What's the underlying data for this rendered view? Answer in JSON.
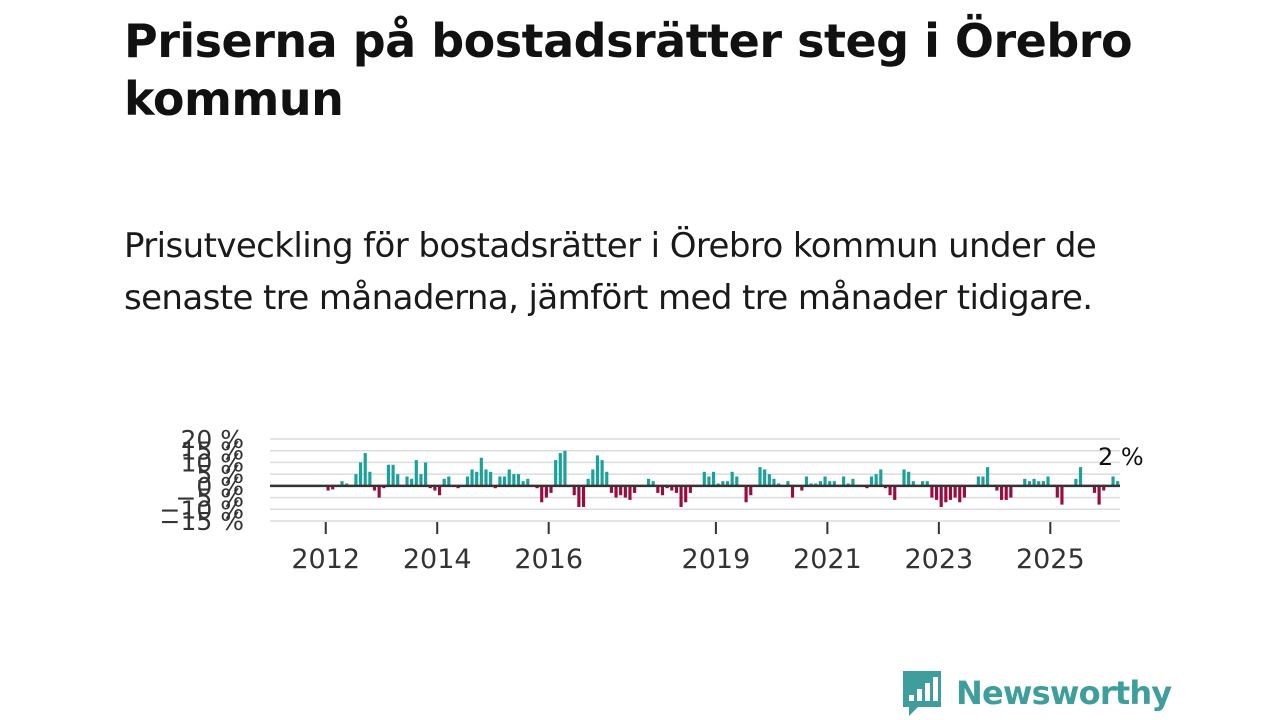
{
  "chart_data": {
    "type": "bar",
    "title": "Priserna på bostadsrätter steg i Örebro kommun",
    "subtitle": "Prisutveckling för bostadsrätter i Örebro kommun under de senaste tre månaderna, jämfört med tre månader tidigare.",
    "xlabel": "",
    "ylabel": "",
    "y_unit": "%",
    "ylim": [
      -15,
      20
    ],
    "y_ticks": [
      {
        "value": 20,
        "label": "20 %"
      },
      {
        "value": 15,
        "label": "15 %"
      },
      {
        "value": 10,
        "label": "10 %"
      },
      {
        "value": 5,
        "label": "5 %"
      },
      {
        "value": 0,
        "label": "0 %"
      },
      {
        "value": -5,
        "label": "−5 %"
      },
      {
        "value": -10,
        "label": "−10 %"
      },
      {
        "value": -15,
        "label": "−15 %"
      }
    ],
    "x_ticks": [
      "2012",
      "2014",
      "2016",
      "2019",
      "2021",
      "2023",
      "2025"
    ],
    "start_year": 2011,
    "start_month": 1,
    "values": [
      0,
      0,
      0,
      0,
      0,
      0,
      0,
      0,
      0,
      0,
      0,
      0,
      -2,
      -1.5,
      0,
      2,
      1,
      0,
      5,
      10,
      14,
      6,
      -2,
      -5,
      -1,
      9,
      9,
      5,
      0,
      4,
      3,
      11,
      5,
      10,
      -1,
      -2,
      -4,
      3,
      4,
      0,
      -1,
      0,
      4,
      7,
      6,
      12,
      7,
      6,
      -1,
      4,
      4,
      7,
      5,
      5,
      2,
      3,
      0,
      -1,
      -7,
      -5,
      -3,
      11,
      14,
      15,
      0,
      -4,
      -9,
      -9,
      3,
      7,
      13,
      11,
      6,
      -3,
      -5,
      -4,
      -5,
      -6,
      -3,
      0,
      0,
      3,
      2,
      -3,
      -4,
      -1,
      -2,
      -3,
      -9,
      -7,
      -3,
      0,
      0,
      6,
      4,
      6,
      1,
      2,
      2,
      6,
      4,
      0,
      -7,
      -4,
      0,
      8,
      7,
      5,
      3,
      1,
      0,
      2,
      -5,
      0,
      -2,
      4,
      1,
      1,
      2,
      4,
      2,
      2,
      0,
      4,
      1,
      3,
      0,
      0,
      -1,
      4,
      5,
      7,
      -1,
      -4,
      -6,
      0,
      7,
      6,
      2,
      0,
      2,
      2,
      -5,
      -6,
      -9,
      -7,
      -6,
      -5,
      -7,
      -5,
      0,
      0,
      4,
      4,
      8,
      0,
      -2,
      -6,
      -6,
      -5,
      0,
      0,
      3,
      2,
      3,
      2,
      2,
      4,
      0,
      -5,
      -8,
      0,
      0,
      3,
      8,
      0,
      0,
      -3,
      -8,
      -2,
      0,
      4,
      2
    ],
    "end_label": "2 %",
    "colors": {
      "positive": "#1aa19b",
      "negative": "#9b0b3d",
      "gridline": "#dcdcdc",
      "zero_line": "#333333",
      "axis_text": "#333333"
    }
  },
  "brand": {
    "name": "Newsworthy",
    "color": "#3e9e9b",
    "logo_icon": "bar-chart-speech-bubble-icon"
  }
}
